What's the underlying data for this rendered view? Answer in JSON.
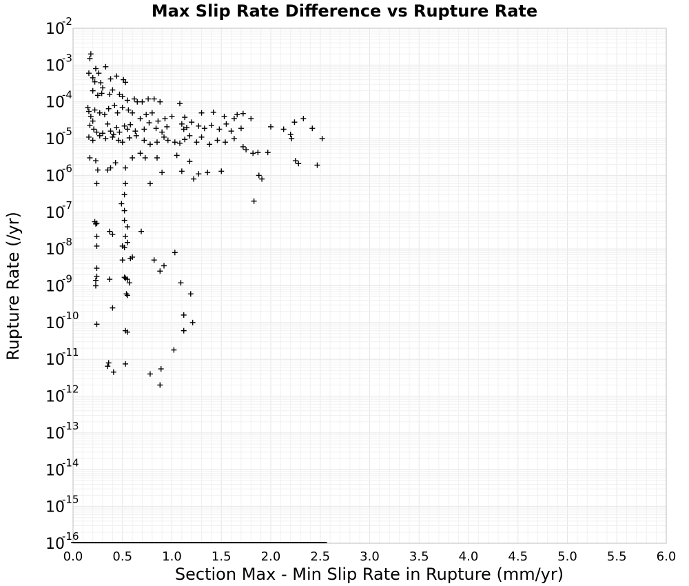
{
  "chart_data": {
    "type": "scatter",
    "title": "Max Slip Rate Difference vs Rupture Rate",
    "xlabel": "Section Max - Min Slip Rate in Rupture (mm/yr)",
    "ylabel": "Rupture Rate (/yr)",
    "xlim": [
      0.0,
      6.0
    ],
    "ylim": [
      1e-16,
      0.01
    ],
    "yscale": "log",
    "grid": true,
    "marker": "plus",
    "marker_color": "#000000",
    "xticks": [
      "0.0",
      "0.5",
      "1.0",
      "1.5",
      "2.0",
      "2.5",
      "3.0",
      "3.5",
      "4.0",
      "4.5",
      "5.0",
      "5.5",
      "6.0"
    ],
    "yticks": [
      {
        "base": "10",
        "exp": "-2"
      },
      {
        "base": "10",
        "exp": "-3"
      },
      {
        "base": "10",
        "exp": "-4"
      },
      {
        "base": "10",
        "exp": "-5"
      },
      {
        "base": "10",
        "exp": "-6"
      },
      {
        "base": "10",
        "exp": "-7"
      },
      {
        "base": "10",
        "exp": "-8"
      },
      {
        "base": "10",
        "exp": "-9"
      },
      {
        "base": "10",
        "exp": "-10"
      },
      {
        "base": "10",
        "exp": "-11"
      },
      {
        "base": "10",
        "exp": "-12"
      },
      {
        "base": "10",
        "exp": "-13"
      },
      {
        "base": "10",
        "exp": "-14"
      },
      {
        "base": "10",
        "exp": "-15"
      },
      {
        "base": "10",
        "exp": "-16"
      }
    ],
    "points": [
      [
        0.17,
        0.0015
      ],
      [
        0.18,
        0.002
      ],
      [
        0.23,
        0.0008
      ],
      [
        0.26,
        0.0006
      ],
      [
        0.33,
        0.0009
      ],
      [
        0.16,
        0.0006
      ],
      [
        0.2,
        0.00045
      ],
      [
        0.22,
        0.00035
      ],
      [
        0.28,
        0.00033
      ],
      [
        0.3,
        0.00024
      ],
      [
        0.38,
        0.00042
      ],
      [
        0.44,
        0.0005
      ],
      [
        0.51,
        0.0004
      ],
      [
        0.53,
        0.00034
      ],
      [
        0.2,
        0.0002
      ],
      [
        0.25,
        0.00015
      ],
      [
        0.29,
        0.00017
      ],
      [
        0.37,
        0.00016
      ],
      [
        0.4,
        0.00021
      ],
      [
        0.47,
        0.00016
      ],
      [
        0.5,
        0.00014
      ],
      [
        0.55,
        0.00011
      ],
      [
        0.62,
        0.00012
      ],
      [
        0.65,
        0.0001
      ],
      [
        0.7,
        0.0001
      ],
      [
        0.76,
        0.00012
      ],
      [
        0.82,
        0.00012
      ],
      [
        0.88,
        0.0001
      ],
      [
        1.08,
        9e-05
      ],
      [
        0.15,
        7e-05
      ],
      [
        0.16,
        5.5e-05
      ],
      [
        0.18,
        4e-05
      ],
      [
        0.2,
        3e-05
      ],
      [
        0.22,
        6e-05
      ],
      [
        0.27,
        5e-05
      ],
      [
        0.32,
        4.5e-05
      ],
      [
        0.36,
        6.5e-05
      ],
      [
        0.42,
        8e-05
      ],
      [
        0.45,
        5e-05
      ],
      [
        0.5,
        7e-05
      ],
      [
        0.56,
        6e-05
      ],
      [
        0.6,
        5e-05
      ],
      [
        0.68,
        3.5e-05
      ],
      [
        0.74,
        4.5e-05
      ],
      [
        0.8,
        5e-05
      ],
      [
        0.86,
        3e-05
      ],
      [
        0.93,
        3.5e-05
      ],
      [
        1.0,
        4e-05
      ],
      [
        1.13,
        3.8e-05
      ],
      [
        1.3,
        5e-05
      ],
      [
        1.42,
        5.2e-05
      ],
      [
        1.53,
        4e-05
      ],
      [
        1.63,
        3.5e-05
      ],
      [
        1.66,
        4.5e-05
      ],
      [
        1.72,
        4.8e-05
      ],
      [
        1.8,
        3.5e-05
      ],
      [
        0.17,
        2.3e-05
      ],
      [
        0.21,
        1.8e-05
      ],
      [
        0.24,
        1.5e-05
      ],
      [
        0.3,
        1.4e-05
      ],
      [
        0.35,
        2.5e-05
      ],
      [
        0.38,
        1.6e-05
      ],
      [
        0.41,
        1.3e-05
      ],
      [
        0.44,
        2e-05
      ],
      [
        0.47,
        1.5e-05
      ],
      [
        0.52,
        2.2e-05
      ],
      [
        0.55,
        1.8e-05
      ],
      [
        0.58,
        2.4e-05
      ],
      [
        0.63,
        1.6e-05
      ],
      [
        0.72,
        1.8e-05
      ],
      [
        0.77,
        2.7e-05
      ],
      [
        0.84,
        1.9e-05
      ],
      [
        0.9,
        1.5e-05
      ],
      [
        0.95,
        2.1e-05
      ],
      [
        1.1,
        2.5e-05
      ],
      [
        1.12,
        1.8e-05
      ],
      [
        1.15,
        2e-05
      ],
      [
        1.2,
        2.8e-05
      ],
      [
        1.27,
        2.2e-05
      ],
      [
        1.33,
        1.9e-05
      ],
      [
        1.4,
        2.3e-05
      ],
      [
        1.48,
        1.8e-05
      ],
      [
        1.55,
        2.5e-05
      ],
      [
        1.6,
        1.6e-05
      ],
      [
        1.7,
        1.9e-05
      ],
      [
        2.0,
        2.1e-05
      ],
      [
        2.13,
        1.8e-05
      ],
      [
        2.2,
        1.3e-05
      ],
      [
        2.24,
        2.8e-05
      ],
      [
        2.33,
        3.5e-05
      ],
      [
        2.42,
        1.9e-05
      ],
      [
        0.16,
        1.1e-05
      ],
      [
        0.2,
        9e-06
      ],
      [
        0.27,
        1.2e-05
      ],
      [
        0.33,
        1e-05
      ],
      [
        0.4,
        1.1e-05
      ],
      [
        0.46,
        9e-06
      ],
      [
        0.5,
        8e-06
      ],
      [
        0.57,
        1.05e-05
      ],
      [
        0.64,
        1.2e-05
      ],
      [
        0.72,
        9e-06
      ],
      [
        0.78,
        7e-06
      ],
      [
        0.85,
        8e-06
      ],
      [
        0.92,
        1.1e-05
      ],
      [
        0.96,
        9e-06
      ],
      [
        1.03,
        8e-06
      ],
      [
        1.08,
        7.5e-06
      ],
      [
        1.13,
        9.5e-06
      ],
      [
        1.18,
        1.2e-05
      ],
      [
        1.25,
        8e-06
      ],
      [
        1.3,
        1.1e-05
      ],
      [
        1.38,
        7e-06
      ],
      [
        1.46,
        9e-06
      ],
      [
        1.54,
        8e-06
      ],
      [
        1.63,
        1e-05
      ],
      [
        1.72,
        6e-06
      ],
      [
        1.75,
        5e-06
      ],
      [
        1.82,
        4e-06
      ],
      [
        1.87,
        4.2e-06
      ],
      [
        1.97,
        4.2e-06
      ],
      [
        2.21,
        1e-05
      ],
      [
        2.25,
        2.5e-06
      ],
      [
        2.28,
        2.1e-06
      ],
      [
        2.47,
        1.9e-06
      ],
      [
        2.52,
        1e-05
      ],
      [
        0.17,
        3e-06
      ],
      [
        0.23,
        2.5e-06
      ],
      [
        0.25,
        1.4e-06
      ],
      [
        0.35,
        1.4e-06
      ],
      [
        0.38,
        1.6e-06
      ],
      [
        0.43,
        2.2e-06
      ],
      [
        0.53,
        1.6e-06
      ],
      [
        0.6,
        3e-06
      ],
      [
        0.68,
        4e-06
      ],
      [
        0.73,
        3e-06
      ],
      [
        0.85,
        3e-06
      ],
      [
        0.9,
        1.2e-06
      ],
      [
        1.05,
        3.5e-06
      ],
      [
        1.1,
        1.3e-06
      ],
      [
        1.18,
        2.4e-06
      ],
      [
        1.27,
        1.1e-06
      ],
      [
        1.36,
        1.2e-06
      ],
      [
        1.5,
        1.3e-06
      ],
      [
        1.88,
        1e-06
      ],
      [
        1.91,
        8e-07
      ],
      [
        0.24,
        6e-07
      ],
      [
        0.53,
        6e-07
      ],
      [
        0.78,
        6e-07
      ],
      [
        1.22,
        8e-07
      ],
      [
        0.52,
        3e-07
      ],
      [
        0.49,
        1.7e-07
      ],
      [
        1.83,
        2e-07
      ],
      [
        0.52,
        1.1e-07
      ],
      [
        0.22,
        5.5e-08
      ],
      [
        0.23,
        4.8e-08
      ],
      [
        0.24,
        5e-08
      ],
      [
        0.52,
        6e-08
      ],
      [
        0.55,
        4e-08
      ],
      [
        0.69,
        3e-08
      ],
      [
        0.37,
        3e-08
      ],
      [
        0.4,
        2.5e-08
      ],
      [
        0.24,
        2.2e-08
      ],
      [
        0.53,
        2.2e-08
      ],
      [
        0.55,
        1.5e-08
      ],
      [
        0.5,
        1.2e-08
      ],
      [
        0.52,
        1.1e-08
      ],
      [
        0.24,
        1.2e-08
      ],
      [
        0.58,
        5.5e-09
      ],
      [
        0.6,
        6e-09
      ],
      [
        0.5,
        5e-09
      ],
      [
        0.82,
        5e-09
      ],
      [
        0.92,
        3.5e-09
      ],
      [
        1.03,
        8e-09
      ],
      [
        0.88,
        2.5e-09
      ],
      [
        0.24,
        3e-09
      ],
      [
        0.24,
        1.8e-09
      ],
      [
        0.52,
        1.7e-09
      ],
      [
        0.53,
        1.6e-09
      ],
      [
        0.55,
        1.5e-09
      ],
      [
        0.37,
        1.5e-09
      ],
      [
        0.23,
        1.4e-09
      ],
      [
        0.57,
        1.2e-09
      ],
      [
        0.23,
        1e-09
      ],
      [
        1.09,
        1.2e-09
      ],
      [
        1.19,
        6e-10
      ],
      [
        0.54,
        6e-10
      ],
      [
        0.55,
        5.5e-10
      ],
      [
        0.4,
        2.5e-10
      ],
      [
        1.12,
        1.6e-10
      ],
      [
        1.21,
        1e-10
      ],
      [
        0.24,
        9e-11
      ],
      [
        0.53,
        6e-11
      ],
      [
        0.55,
        5.5e-11
      ],
      [
        1.12,
        6e-11
      ],
      [
        1.02,
        1.8e-11
      ],
      [
        0.36,
        8e-12
      ],
      [
        0.35,
        6.5e-12
      ],
      [
        0.53,
        7.5e-12
      ],
      [
        0.41,
        4.5e-12
      ],
      [
        0.89,
        5.5e-12
      ],
      [
        0.78,
        4e-12
      ],
      [
        0.88,
        2e-12
      ]
    ],
    "floor_points_range": [
      0.0,
      2.55
    ]
  }
}
